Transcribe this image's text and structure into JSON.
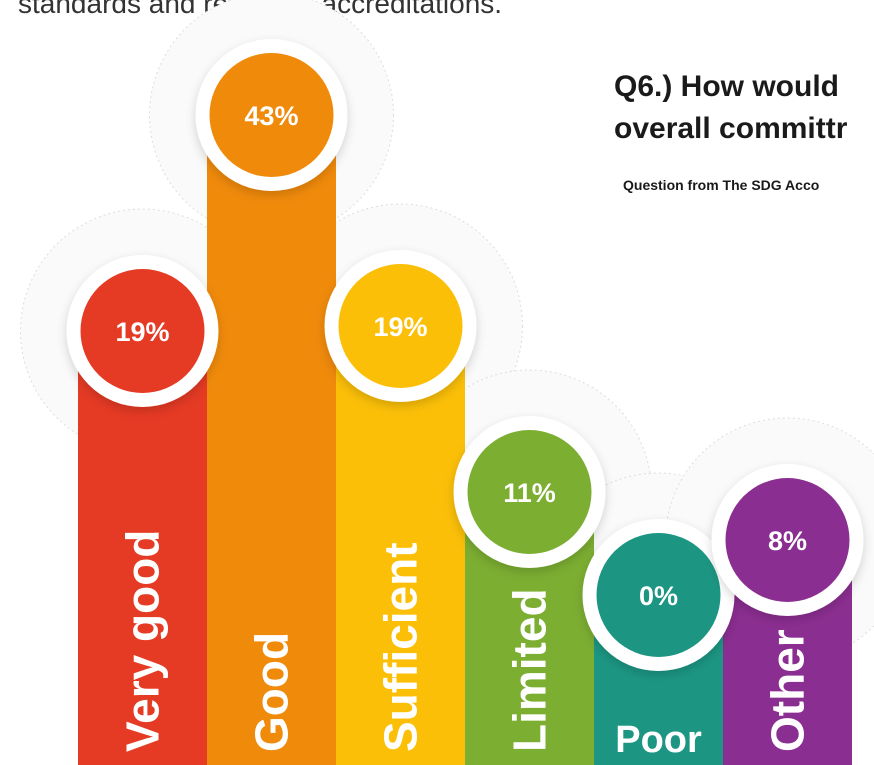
{
  "header": {
    "top_text": "standards and reporting accreditations.",
    "title_line1": "Q6.) How would",
    "title_line2": "overall committr",
    "subtitle": "Question from The SDG Acco"
  },
  "chart_data": {
    "type": "bar",
    "categories": [
      "Very good",
      "Good",
      "Sufficient",
      "Limited",
      "Poor",
      "Other"
    ],
    "values": [
      19,
      43,
      19,
      11,
      0,
      8
    ],
    "value_labels": [
      "19%",
      "43%",
      "19%",
      "11%",
      "0%",
      "8%"
    ],
    "colors": [
      "#e53a24",
      "#f08a0b",
      "#fbbf08",
      "#7cae32",
      "#1c9683",
      "#8b2e91"
    ],
    "title": "Q6.) How would overall committr",
    "subtitle": "Question from The SDG Acco",
    "grid": false,
    "legend": "none"
  }
}
